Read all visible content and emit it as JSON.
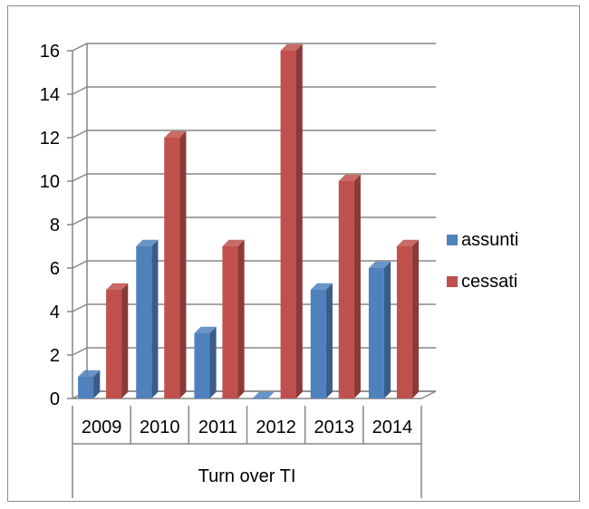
{
  "chart_data": {
    "type": "bar",
    "subtype": "3d-clustered-column",
    "categories": [
      "2009",
      "2010",
      "2011",
      "2012",
      "2013",
      "2014"
    ],
    "group_label": "Turn over TI",
    "series": [
      {
        "name": "assunti",
        "values": [
          1,
          7,
          3,
          0,
          5,
          6
        ],
        "color": "#4f81bd"
      },
      {
        "name": "cessati",
        "values": [
          5,
          12,
          7,
          16,
          10,
          7
        ],
        "color": "#c0504d"
      }
    ],
    "ylim": [
      0,
      16
    ],
    "yticks": [
      0,
      2,
      4,
      6,
      8,
      10,
      12,
      14,
      16
    ],
    "grid": true,
    "legend_position": "right"
  }
}
